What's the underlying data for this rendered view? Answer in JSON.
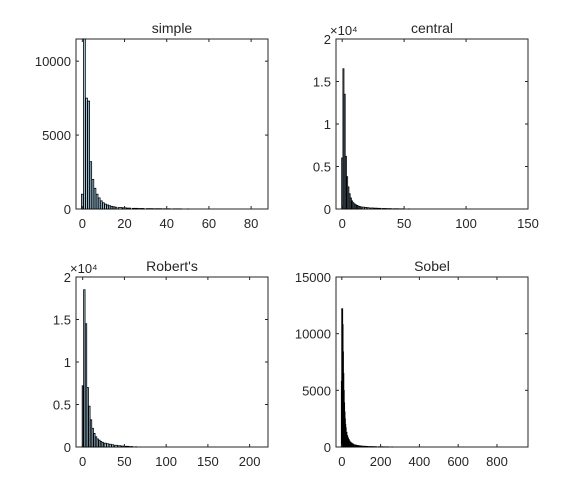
{
  "chart_data": [
    {
      "type": "bar",
      "title": "simple",
      "xlim": [
        -3,
        88
      ],
      "ylim": [
        0,
        11500
      ],
      "xticks": [
        0,
        20,
        40,
        60,
        80
      ],
      "yticks": [
        0,
        5000,
        10000
      ],
      "ytick_labels": [
        "0",
        "5000",
        "10000"
      ],
      "exponent_label": "",
      "dense": false,
      "x": [
        0,
        1,
        2,
        3,
        4,
        5,
        6,
        7,
        8,
        9,
        10,
        11,
        12,
        13,
        14,
        15,
        16,
        18,
        20,
        22,
        25,
        28,
        32,
        36,
        40,
        45,
        50
      ],
      "values": [
        1000,
        11500,
        7500,
        7300,
        3200,
        2000,
        1400,
        1000,
        750,
        550,
        420,
        330,
        270,
        220,
        180,
        150,
        120,
        100,
        80,
        60,
        45,
        35,
        25,
        20,
        15,
        10,
        5
      ]
    },
    {
      "type": "bar",
      "title": "central",
      "xlim": [
        -5,
        150
      ],
      "ylim": [
        0,
        20000
      ],
      "xticks": [
        0,
        50,
        100,
        150
      ],
      "yticks": [
        0,
        5000,
        10000,
        15000,
        20000
      ],
      "ytick_labels": [
        "0",
        "0.5",
        "1",
        "1.5",
        "2"
      ],
      "exponent_label": "×10⁴",
      "dense": false,
      "x": [
        0,
        1,
        2,
        3,
        4,
        5,
        6,
        7,
        8,
        9,
        10,
        11,
        12,
        13,
        14,
        15,
        17,
        19,
        21,
        24,
        27,
        30,
        34,
        38,
        43,
        48,
        54
      ],
      "values": [
        6000,
        16500,
        13500,
        6200,
        3800,
        2600,
        1800,
        1300,
        950,
        750,
        600,
        500,
        420,
        360,
        300,
        260,
        220,
        180,
        150,
        120,
        100,
        80,
        60,
        45,
        30,
        20,
        10
      ]
    },
    {
      "type": "bar",
      "title": "Robert's",
      "xlim": [
        -8,
        222
      ],
      "ylim": [
        0,
        20000
      ],
      "xticks": [
        0,
        50,
        100,
        150,
        200
      ],
      "yticks": [
        0,
        5000,
        10000,
        15000,
        20000
      ],
      "ytick_labels": [
        "0",
        "0.5",
        "1",
        "1.5",
        "2"
      ],
      "exponent_label": "×10⁴",
      "dense": false,
      "x": [
        0,
        2,
        4,
        6,
        8,
        10,
        12,
        14,
        16,
        18,
        20,
        22,
        24,
        27,
        30,
        33,
        36,
        40,
        44,
        48,
        53,
        58,
        64
      ],
      "values": [
        7200,
        18500,
        14500,
        7000,
        4800,
        3200,
        2200,
        1600,
        1200,
        950,
        800,
        650,
        550,
        450,
        380,
        320,
        260,
        200,
        150,
        110,
        80,
        50,
        25
      ]
    },
    {
      "type": "bar",
      "title": "Sobel",
      "xlim": [
        -30,
        960
      ],
      "ylim": [
        0,
        15000
      ],
      "xticks": [
        0,
        200,
        400,
        600,
        800
      ],
      "yticks": [
        0,
        5000,
        10000,
        15000
      ],
      "ytick_labels": [
        "0",
        "5000",
        "10000",
        "15000"
      ],
      "exponent_label": "",
      "dense": true,
      "x": [
        0,
        2,
        4,
        6,
        8,
        10,
        12,
        14,
        16,
        18,
        20,
        24,
        28,
        32,
        36,
        40,
        45,
        50,
        55,
        60,
        70,
        80,
        90,
        100,
        115,
        130,
        150,
        170,
        200,
        230,
        260
      ],
      "values": [
        5800,
        12200,
        10800,
        8400,
        6500,
        5000,
        3900,
        3100,
        2500,
        2000,
        1700,
        1300,
        1000,
        800,
        650,
        520,
        420,
        350,
        290,
        240,
        180,
        140,
        110,
        90,
        70,
        55,
        40,
        30,
        20,
        12,
        6
      ]
    }
  ]
}
